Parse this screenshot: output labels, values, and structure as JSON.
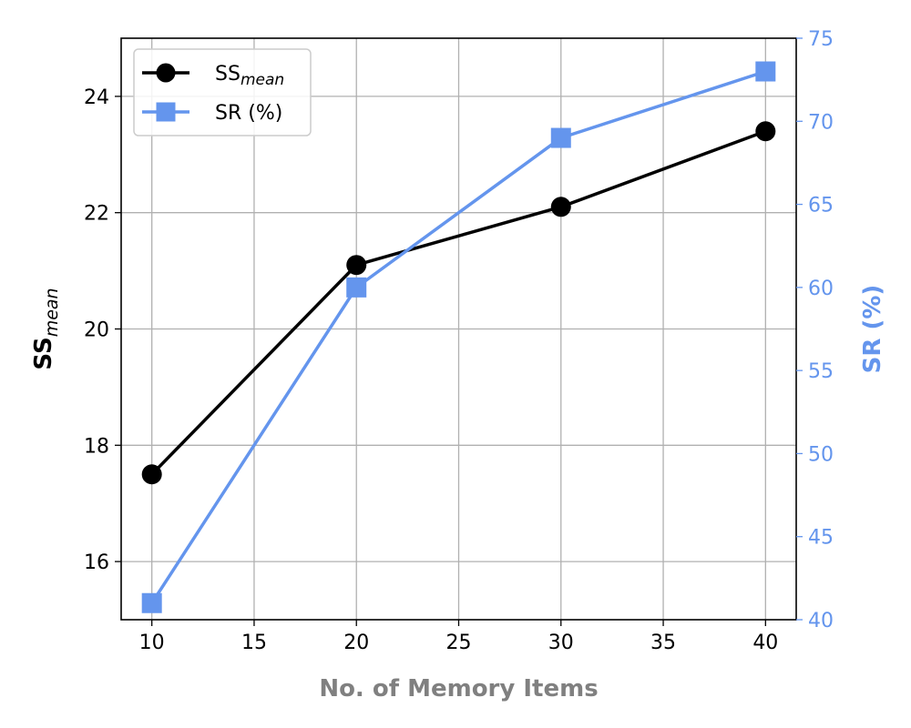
{
  "chart_data": {
    "type": "line",
    "xlabel": "No. of Memory Items",
    "x": [
      10,
      20,
      30,
      40
    ],
    "xlim": [
      8.5,
      41.5
    ],
    "xticks": [
      10,
      15,
      20,
      25,
      30,
      35,
      40
    ],
    "grid": true,
    "legend_position": "top-left",
    "left_axis": {
      "label_main": "SS",
      "label_sub": "mean",
      "ylim": [
        15,
        25
      ],
      "yticks": [
        16,
        18,
        20,
        22,
        24
      ],
      "color": "#000000"
    },
    "right_axis": {
      "label": "SR (%)",
      "ylim": [
        40,
        75
      ],
      "yticks": [
        40,
        45,
        50,
        55,
        60,
        65,
        70,
        75
      ],
      "color": "#6495ED"
    },
    "series": [
      {
        "name_main": "SS",
        "name_sub": "mean",
        "axis": "left",
        "marker": "circle",
        "color": "#000000",
        "values": [
          17.5,
          21.1,
          22.1,
          23.4
        ]
      },
      {
        "name": "SR (%)",
        "axis": "right",
        "marker": "square",
        "color": "#6495ED",
        "values": [
          41,
          60,
          69,
          73
        ]
      }
    ]
  }
}
